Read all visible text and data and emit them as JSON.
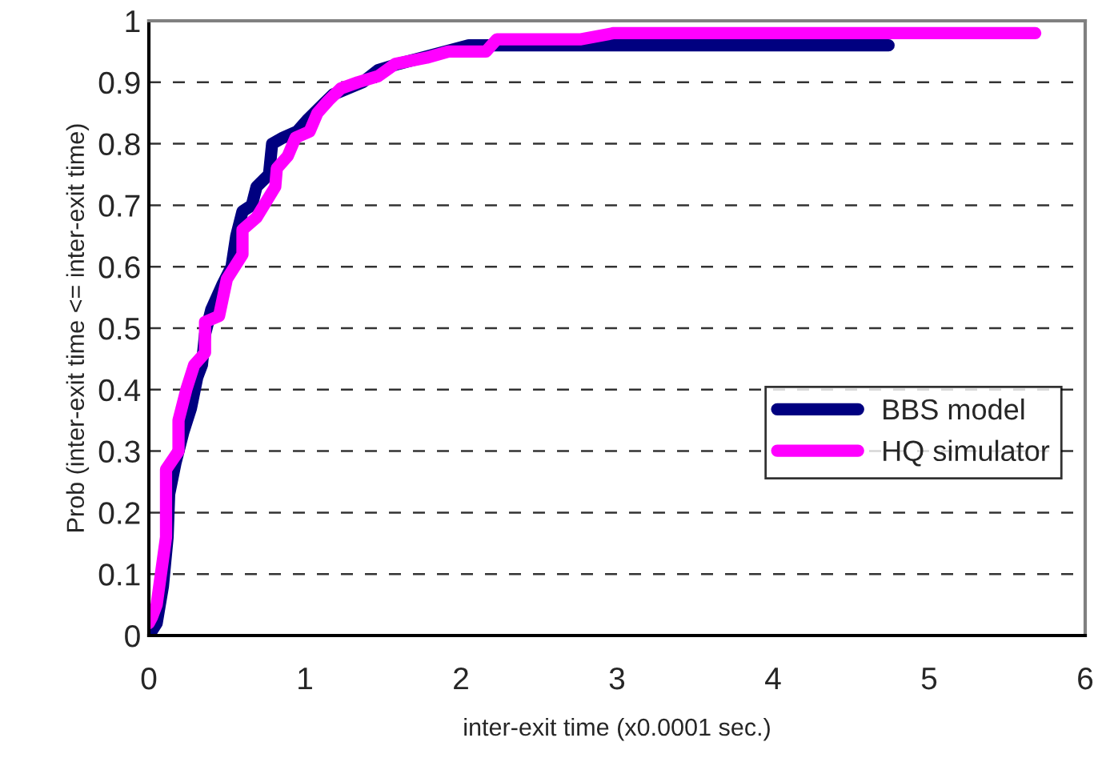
{
  "chart_data": {
    "type": "line",
    "xlabel": "inter-exit time (x0.0001 sec.)",
    "ylabel": "Prob (inter-exit time <= inter-exit time)",
    "xlim": [
      0,
      6
    ],
    "xticks": [
      0,
      1,
      2,
      3,
      4,
      5,
      6
    ],
    "ylim": [
      0,
      1
    ],
    "yticks": [
      0,
      0.1,
      0.2,
      0.3,
      0.4,
      0.5,
      0.6,
      0.7,
      0.8,
      0.9,
      1
    ],
    "grid": "y",
    "legend": "right",
    "marker": "none",
    "line_style": "solid",
    "series": [
      {
        "name": "BBS model",
        "color": "#000080",
        "x": [
          0,
          0.05,
          0.09,
          0.12,
          0.13,
          0.17,
          0.22,
          0.27,
          0.31,
          0.34,
          0.36,
          0.4,
          0.47,
          0.53,
          0.56,
          0.6,
          0.66,
          0.69,
          0.77,
          0.79,
          0.86,
          0.95,
          1.02,
          1.1,
          1.18,
          1.37,
          1.47,
          1.6,
          1.75,
          1.9,
          2.05,
          2.5,
          4.74
        ],
        "values": [
          0,
          0.02,
          0.08,
          0.16,
          0.23,
          0.28,
          0.33,
          0.37,
          0.42,
          0.44,
          0.49,
          0.53,
          0.57,
          0.6,
          0.65,
          0.69,
          0.7,
          0.73,
          0.75,
          0.8,
          0.81,
          0.82,
          0.84,
          0.86,
          0.88,
          0.9,
          0.92,
          0.93,
          0.94,
          0.95,
          0.96,
          0.96,
          0.96
        ]
      },
      {
        "name": "HQ simulator",
        "color": "#ff00ff",
        "x": [
          0,
          0.02,
          0.05,
          0.11,
          0.11,
          0.19,
          0.19,
          0.24,
          0.29,
          0.36,
          0.36,
          0.45,
          0.5,
          0.6,
          0.6,
          0.69,
          0.81,
          0.82,
          0.89,
          0.94,
          1.03,
          1.08,
          1.15,
          1.23,
          1.34,
          1.47,
          1.58,
          1.78,
          1.92,
          2.16,
          2.23,
          2.77,
          2.98,
          5.68
        ],
        "values": [
          0.02,
          0.03,
          0.05,
          0.16,
          0.27,
          0.3,
          0.35,
          0.4,
          0.44,
          0.46,
          0.51,
          0.52,
          0.58,
          0.62,
          0.66,
          0.68,
          0.73,
          0.76,
          0.78,
          0.81,
          0.82,
          0.85,
          0.87,
          0.89,
          0.9,
          0.91,
          0.93,
          0.94,
          0.95,
          0.95,
          0.97,
          0.97,
          0.98,
          0.98
        ]
      }
    ]
  }
}
